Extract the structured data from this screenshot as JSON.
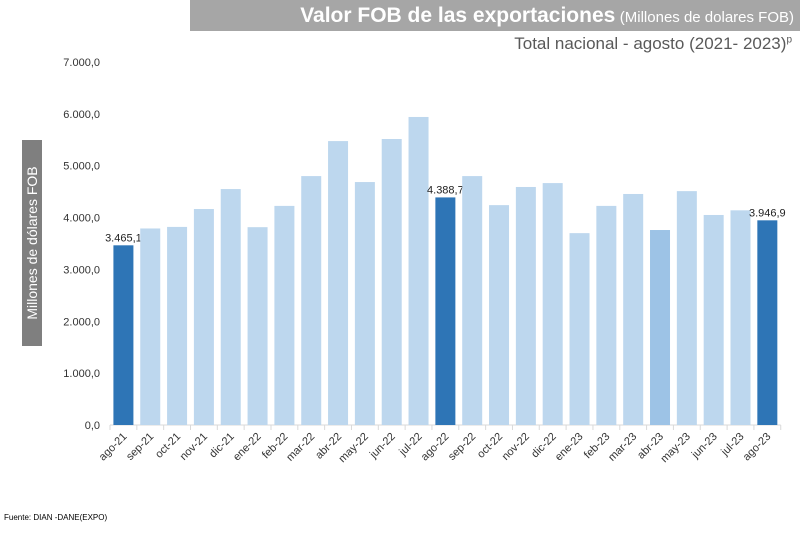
{
  "chart_data": {
    "type": "bar",
    "title": "Valor FOB de las exportaciones",
    "title_unit": "(Millones de dolares FOB)",
    "subtitle": "Total nacional - agosto (2021- 2023)",
    "subtitle_sup": "p",
    "ylabel": "Millones de dólares FOB",
    "xlabel": "",
    "ylim": [
      0,
      7000
    ],
    "yticks": [
      "0,0",
      "1.000,0",
      "2.000,0",
      "3.000,0",
      "4.000,0",
      "5.000,0",
      "6.000,0",
      "7.000,0"
    ],
    "ytick_values": [
      0,
      1000,
      2000,
      3000,
      4000,
      5000,
      6000,
      7000
    ],
    "grid": false,
    "categories": [
      "ago-21",
      "sep-21",
      "oct-21",
      "nov-21",
      "dic-21",
      "ene-22",
      "feb-22",
      "mar-22",
      "abr-22",
      "may-22",
      "jun-22",
      "jul-22",
      "ago-22",
      "sep-22",
      "oct-22",
      "nov-22",
      "dic-22",
      "ene-23",
      "feb-23",
      "mar-23",
      "abr-23",
      "may-23",
      "jun-23",
      "jul-23",
      "ago-23"
    ],
    "values": [
      3465.1,
      3790,
      3820,
      4165,
      4550,
      3815,
      4225,
      4800,
      5475,
      4685,
      5515,
      5940,
      4388.7,
      4800,
      4240,
      4590,
      4665,
      3700,
      4225,
      4455,
      3760,
      4510,
      4050,
      4140,
      3946.9
    ],
    "data_labels": {
      "0": "3.465,1",
      "12": "4.388,7",
      "24": "3.946,9"
    },
    "colors": {
      "highlight": "#2e75b6",
      "normal": "#bdd7ee",
      "medium": "#9dc3e6"
    },
    "bar_color_keys": [
      "highlight",
      "normal",
      "normal",
      "normal",
      "normal",
      "normal",
      "normal",
      "normal",
      "normal",
      "normal",
      "normal",
      "normal",
      "highlight",
      "normal",
      "normal",
      "normal",
      "normal",
      "normal",
      "normal",
      "normal",
      "medium",
      "normal",
      "normal",
      "normal",
      "highlight"
    ]
  },
  "source": "Fuente: DIAN -DANE(EXPO)"
}
